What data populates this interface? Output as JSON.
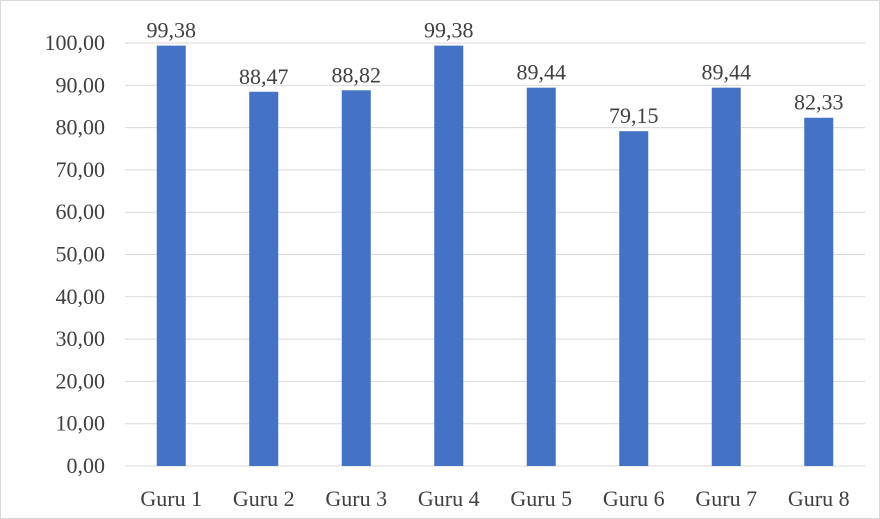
{
  "chart_data": {
    "type": "bar",
    "title": "",
    "xlabel": "",
    "ylabel": "",
    "categories": [
      "Guru 1",
      "Guru 2",
      "Guru 3",
      "Guru 4",
      "Guru 5",
      "Guru 6",
      "Guru 7",
      "Guru 8"
    ],
    "values": [
      99.38,
      88.47,
      88.82,
      99.38,
      89.44,
      79.15,
      89.44,
      82.33
    ],
    "data_labels": [
      "99,38",
      "88,47",
      "88,82",
      "99,38",
      "89,44",
      "79,15",
      "89,44",
      "82,33"
    ],
    "ylim": [
      0,
      100
    ],
    "yticks": [
      0,
      10,
      20,
      30,
      40,
      50,
      60,
      70,
      80,
      90,
      100
    ],
    "ytick_labels": [
      "0,00",
      "10,00",
      "20,00",
      "30,00",
      "40,00",
      "50,00",
      "60,00",
      "70,00",
      "80,00",
      "90,00",
      "100,00"
    ],
    "grid": true,
    "legend": "none",
    "colors": {
      "bar": "#4472c4",
      "grid": "#d9d9d9",
      "text": "#404040"
    }
  }
}
